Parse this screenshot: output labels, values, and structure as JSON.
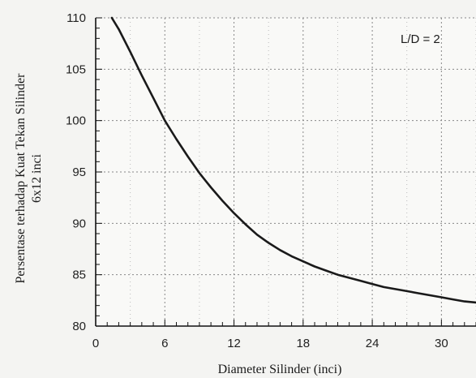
{
  "chart_data": {
    "type": "line",
    "title": "",
    "xlabel": "Diameter Silinder (inci)",
    "ylabel_line1": "Persentase terhadap Kuat Tekan Silinder",
    "ylabel_line2": "6x12 inci",
    "annotation": "L/D = 2",
    "xlim": [
      0,
      33
    ],
    "ylim": [
      80,
      110
    ],
    "xticks": [
      0,
      6,
      12,
      18,
      24,
      30
    ],
    "yticks": [
      80,
      85,
      90,
      95,
      100,
      105,
      110
    ],
    "grid": true,
    "series": [
      {
        "x": [
          1.4,
          2,
          3,
          4,
          5,
          6,
          7,
          8,
          9,
          10,
          11,
          12,
          13,
          14,
          15,
          16,
          17,
          18,
          19,
          20,
          21,
          22,
          23,
          24,
          25,
          26,
          27,
          28,
          29,
          30,
          31,
          32,
          33
        ],
        "y": [
          110,
          108.9,
          106.7,
          104.4,
          102.2,
          100.0,
          98.2,
          96.5,
          94.9,
          93.5,
          92.2,
          91.0,
          89.9,
          88.9,
          88.1,
          87.4,
          86.8,
          86.3,
          85.8,
          85.4,
          85.0,
          84.7,
          84.4,
          84.1,
          83.8,
          83.6,
          83.4,
          83.2,
          83.0,
          82.8,
          82.6,
          82.4,
          82.3
        ],
        "color": "#1a1a1a"
      }
    ]
  }
}
